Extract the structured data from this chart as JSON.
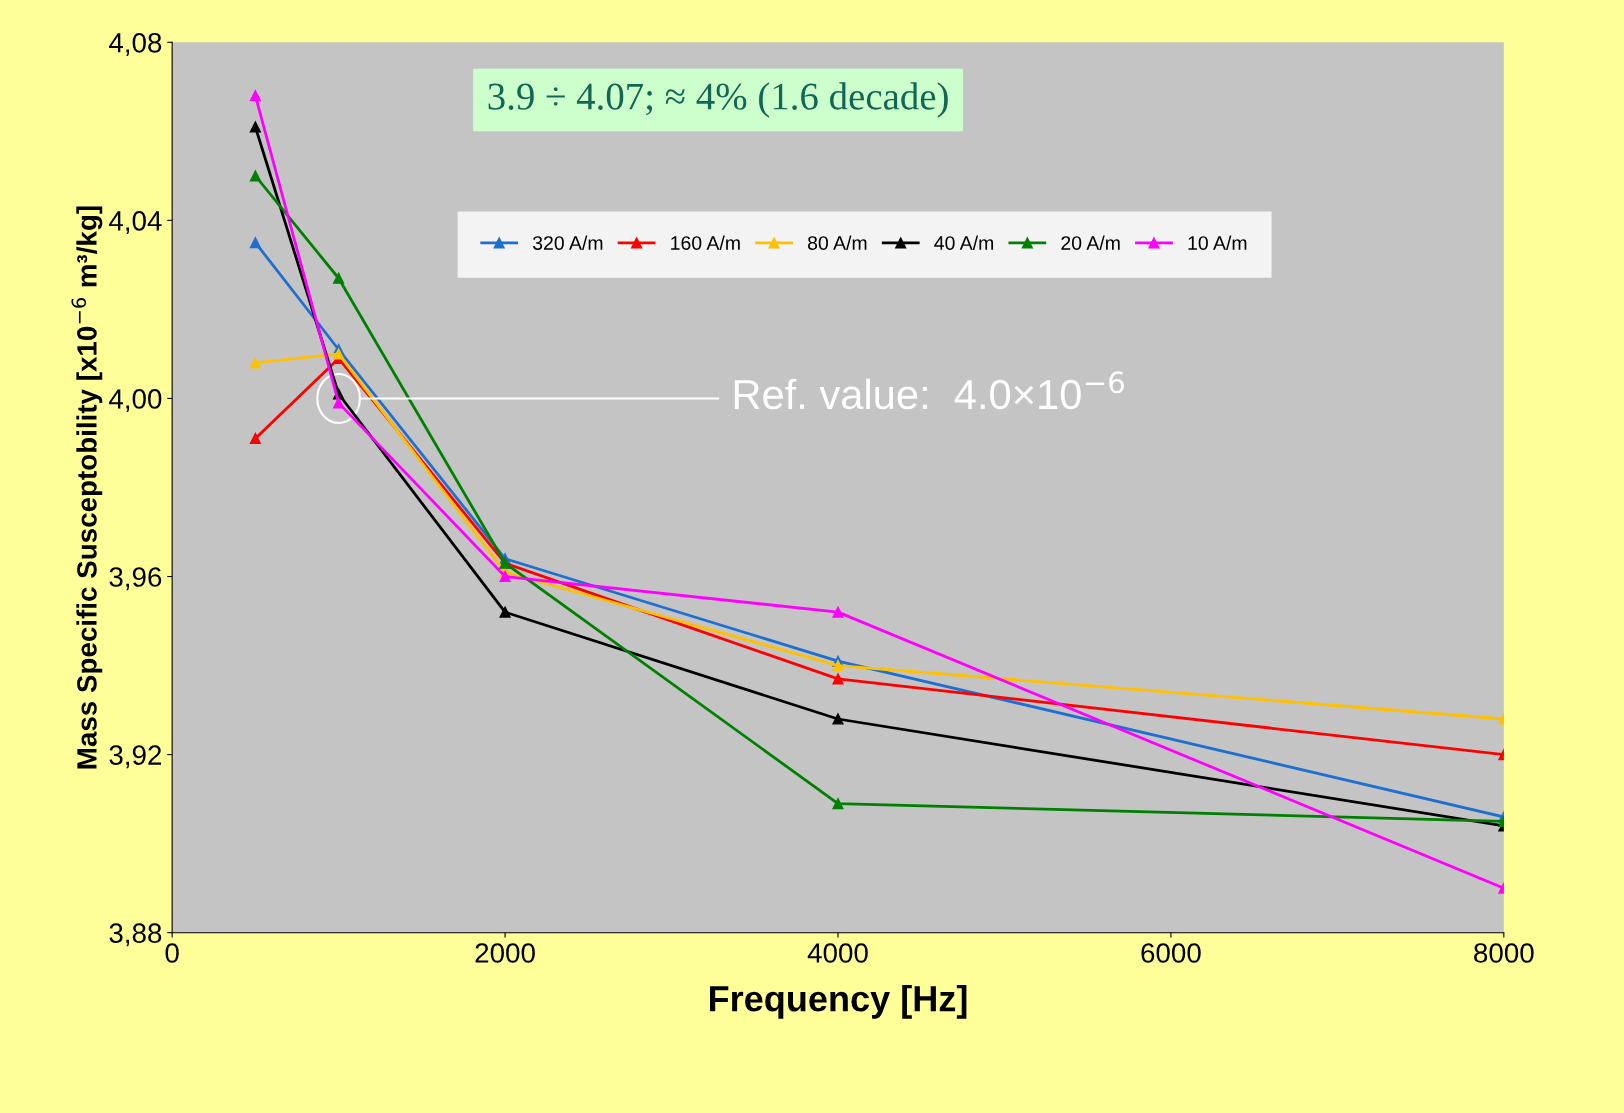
{
  "chart_data": {
    "type": "line",
    "xlabel": "Frequency [Hz]",
    "ylabel": "Mass Specific Susceptobility [x10$^{−6}$ m³/kg]",
    "x": [
      500,
      1000,
      2000,
      4000,
      8000
    ],
    "series": [
      {
        "name": "320 A/m",
        "color": "#1f6fd0",
        "values": [
          4.035,
          4.011,
          3.964,
          3.941,
          3.906
        ]
      },
      {
        "name": "160 A/m",
        "color": "#ff0000",
        "values": [
          3.991,
          4.009,
          3.963,
          3.937,
          3.92
        ]
      },
      {
        "name": "80 A/m",
        "color": "#ffc000",
        "values": [
          4.008,
          4.01,
          3.961,
          3.94,
          3.928
        ]
      },
      {
        "name": "40 A/m",
        "color": "#000000",
        "values": [
          4.061,
          4.001,
          3.952,
          3.928,
          3.904
        ]
      },
      {
        "name": "20 A/m",
        "color": "#008000",
        "values": [
          4.05,
          4.027,
          3.963,
          3.909,
          3.905
        ]
      },
      {
        "name": "10 A/m",
        "color": "#ff00ff",
        "values": [
          4.068,
          3.999,
          3.96,
          3.952,
          3.89
        ]
      }
    ],
    "xlim": [
      0,
      8000
    ],
    "xticks": [
      0,
      2000,
      4000,
      6000,
      8000
    ],
    "ylim": [
      3.88,
      4.08
    ],
    "yticks": [
      {
        "value": 3.88,
        "label": "3,88"
      },
      {
        "value": 3.92,
        "label": "3,92"
      },
      {
        "value": 3.96,
        "label": "3,96"
      },
      {
        "value": 4.0,
        "label": "4,00"
      },
      {
        "value": 4.04,
        "label": "4,04"
      },
      {
        "value": 4.08,
        "label": "4,08"
      }
    ],
    "marker": "triangle",
    "legend": "top",
    "grid": false,
    "annotations": [
      "3.9 ÷ 4.07; ≈ 4% (1.6 decade)",
      "Ref. value:  4.0×10$^{−6}$"
    ]
  }
}
